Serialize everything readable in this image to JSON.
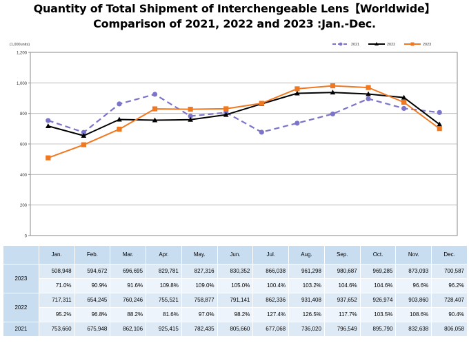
{
  "title": {
    "line1": "Quantity of Total Shipment of Interchengeable Lens【Worldwide】",
    "line2": "Comparison of 2021, 2022 and 2023 :Jan.-Dec."
  },
  "chart_data": {
    "type": "line",
    "unit_label": "(1,000units)",
    "categories": [
      "Jan.",
      "Feb.",
      "Mar.",
      "Apr.",
      "May.",
      "Jun.",
      "Jul.",
      "Aug.",
      "Sep.",
      "Oct.",
      "Nov.",
      "Dec."
    ],
    "ylim": [
      0,
      1200
    ],
    "yticks": [
      0,
      200,
      400,
      600,
      800,
      1000,
      1200
    ],
    "ytick_labels": [
      "0",
      "200",
      "400",
      "600",
      "800",
      "1,000",
      "1,200"
    ],
    "grid": true,
    "legend_position": "top-right",
    "series": [
      {
        "name": "2021",
        "color": "#7b74c8",
        "style": "dashed",
        "marker": "circle",
        "values": [
          753.66,
          675.948,
          862.106,
          925.415,
          782.435,
          805.66,
          677.068,
          736.02,
          796.549,
          895.79,
          832.638,
          806.058
        ]
      },
      {
        "name": "2022",
        "color": "#000000",
        "style": "solid",
        "marker": "triangle",
        "values": [
          717.311,
          654.245,
          760.246,
          755.521,
          758.877,
          791.141,
          862.336,
          931.408,
          937.652,
          926.974,
          903.86,
          728.407
        ]
      },
      {
        "name": "2023",
        "color": "#f07820",
        "style": "solid",
        "marker": "square",
        "values": [
          508.948,
          594.672,
          696.695,
          829.781,
          827.316,
          830.352,
          866.038,
          961.298,
          980.687,
          969.285,
          873.093,
          700.587
        ]
      }
    ]
  },
  "table": {
    "months": [
      "Jan.",
      "Feb.",
      "Mar.",
      "Apr.",
      "May.",
      "Jun.",
      "Jul.",
      "Aug.",
      "Sep.",
      "Oct.",
      "Nov.",
      "Dec."
    ],
    "rows": [
      {
        "year": "2023",
        "values": [
          "508,948",
          "594,672",
          "696,695",
          "829,781",
          "827,316",
          "830,352",
          "866,038",
          "961,298",
          "980,687",
          "969,285",
          "873,093",
          "700,587"
        ],
        "ratios": [
          "71.0%",
          "90.9%",
          "91.6%",
          "109.8%",
          "109.0%",
          "105.0%",
          "100.4%",
          "103.2%",
          "104.6%",
          "104.6%",
          "96.6%",
          "96.2%"
        ]
      },
      {
        "year": "2022",
        "values": [
          "717,311",
          "654,245",
          "760,246",
          "755,521",
          "758,877",
          "791,141",
          "862,336",
          "931,408",
          "937,652",
          "926,974",
          "903,860",
          "728,407"
        ],
        "ratios": [
          "95.2%",
          "96.8%",
          "88.2%",
          "81.6%",
          "97.0%",
          "98.2%",
          "127.4%",
          "126.5%",
          "117.7%",
          "103.5%",
          "108.6%",
          "90.4%"
        ]
      },
      {
        "year": "2021",
        "values": [
          "753,660",
          "675,948",
          "862,106",
          "925,415",
          "782,435",
          "805,660",
          "677,068",
          "736,020",
          "796,549",
          "895,790",
          "832,638",
          "806,058"
        ]
      }
    ]
  }
}
